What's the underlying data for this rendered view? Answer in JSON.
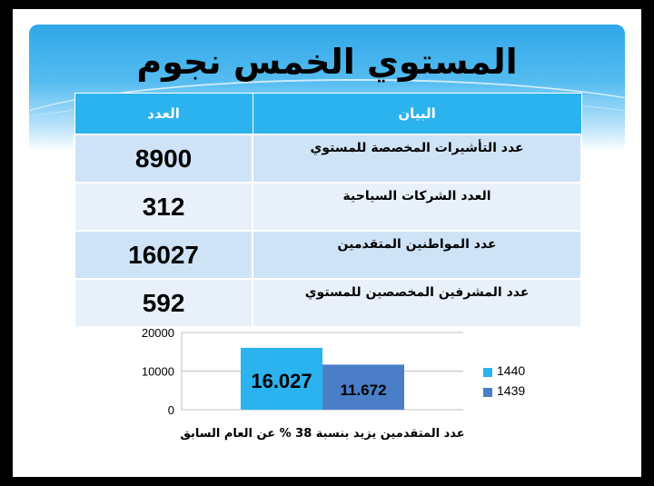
{
  "title": "المستوي الخمس نجوم",
  "table": {
    "headers": {
      "label": "البيان",
      "value": "العدد"
    },
    "rows": [
      {
        "label": "عدد التأشيرات المخصصة للمستوي",
        "value": "8900"
      },
      {
        "label": "العدد الشركات السياحية",
        "value": "312"
      },
      {
        "label": "عدد المواطنين المتقدمين",
        "value": "16027"
      },
      {
        "label": "عدد المشرفين المخصصين للمستوي",
        "value": "592"
      }
    ]
  },
  "chart_data": {
    "type": "bar",
    "categories": [
      "عدد المتقدمين يزيد بنسبة 38 % عن العام السابق"
    ],
    "series": [
      {
        "name": "1440",
        "values": [
          16027
        ],
        "label": "16.027",
        "color": "#2bb3f0"
      },
      {
        "name": "1439",
        "values": [
          11672
        ],
        "label": "11.672",
        "color": "#4a7fc8"
      }
    ],
    "yticks": [
      "20000",
      "10000",
      "0"
    ],
    "ylim": [
      0,
      20000
    ],
    "legend": "right",
    "grid": true
  }
}
